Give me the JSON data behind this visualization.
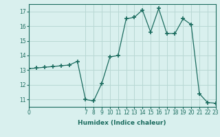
{
  "x": [
    0,
    1,
    2,
    3,
    4,
    5,
    6,
    7,
    8,
    9,
    10,
    11,
    12,
    13,
    14,
    15,
    16,
    17,
    18,
    19,
    20,
    21,
    22,
    23
  ],
  "y": [
    13.1,
    13.15,
    13.2,
    13.25,
    13.3,
    13.35,
    13.6,
    11.0,
    10.9,
    12.1,
    13.9,
    14.0,
    16.5,
    16.6,
    17.1,
    15.6,
    17.2,
    15.5,
    15.5,
    16.5,
    16.1,
    11.4,
    10.8,
    10.75
  ],
  "line_color": "#1a6b5e",
  "marker": "+",
  "marker_size": 4,
  "marker_lw": 1.2,
  "bg_color": "#d9f0ee",
  "grid_color": "#b8d8d4",
  "xlabel": "Humidex (Indice chaleur)",
  "ylim": [
    10.5,
    17.5
  ],
  "xlim": [
    0,
    23
  ],
  "yticks": [
    11,
    12,
    13,
    14,
    15,
    16,
    17
  ],
  "xticks": [
    0,
    7,
    8,
    9,
    10,
    11,
    12,
    13,
    14,
    15,
    16,
    17,
    18,
    19,
    20,
    21,
    22,
    23
  ],
  "tick_color": "#1a6b5e",
  "spine_color": "#1a6b5e",
  "tick_fontsize": 5.5,
  "xlabel_fontsize": 6.5,
  "linewidth": 0.9
}
